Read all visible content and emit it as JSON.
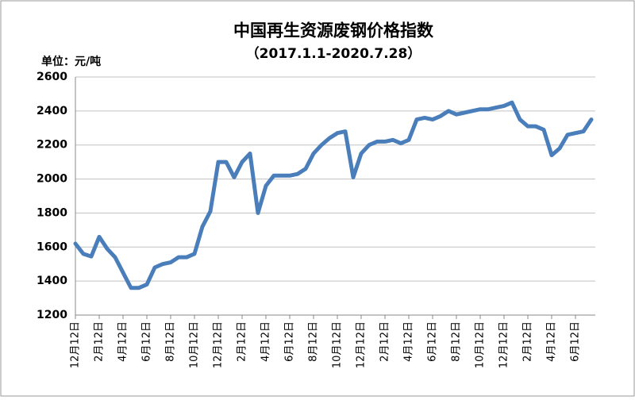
{
  "chart_data": {
    "type": "line",
    "title": "中国再生资源废钢价格指数",
    "subtitle": "（2017.1.1-2020.7.28）",
    "y_label": "单位：元/吨",
    "categories": [
      "12月12日",
      null,
      null,
      "2月12日",
      null,
      null,
      "4月12日",
      null,
      null,
      "6月12日",
      null,
      null,
      "8月12日",
      null,
      null,
      "10月12日",
      null,
      null,
      "12月12日",
      null,
      null,
      "2月12日",
      null,
      null,
      "4月12日",
      null,
      null,
      "6月12日",
      null,
      null,
      "8月12日",
      null,
      null,
      "10月12日",
      null,
      null,
      "12月12日",
      null,
      null,
      "2月12日",
      null,
      null,
      "4月12日",
      null,
      null,
      "6月12日",
      null,
      null,
      "8月12日",
      null,
      null,
      "10月12日",
      null,
      null,
      "12月12日",
      null,
      null,
      "2月12日",
      null,
      null,
      "4月12日",
      null,
      null,
      "6月12日",
      null,
      null
    ],
    "values": [
      1620,
      1560,
      1545,
      1660,
      1590,
      1540,
      1450,
      1360,
      1360,
      1380,
      1480,
      1500,
      1510,
      1540,
      1540,
      1560,
      1720,
      1810,
      2100,
      2100,
      2010,
      2100,
      2150,
      1800,
      1960,
      2020,
      2020,
      2020,
      2030,
      2060,
      2150,
      2200,
      2240,
      2270,
      2280,
      2010,
      2150,
      2200,
      2220,
      2220,
      2230,
      2210,
      2230,
      2350,
      2360,
      2350,
      2370,
      2400,
      2380,
      2390,
      2400,
      2410,
      2410,
      2420,
      2430,
      2450,
      2350,
      2310,
      2310,
      2290,
      2140,
      2180,
      2260,
      2270,
      2280,
      2350
    ],
    "color": "#4a7ebb",
    "ylim": [
      1200,
      2600
    ],
    "yticks": [
      1200,
      1400,
      1600,
      1800,
      2000,
      2200,
      2400,
      2600
    ],
    "grid": true
  }
}
